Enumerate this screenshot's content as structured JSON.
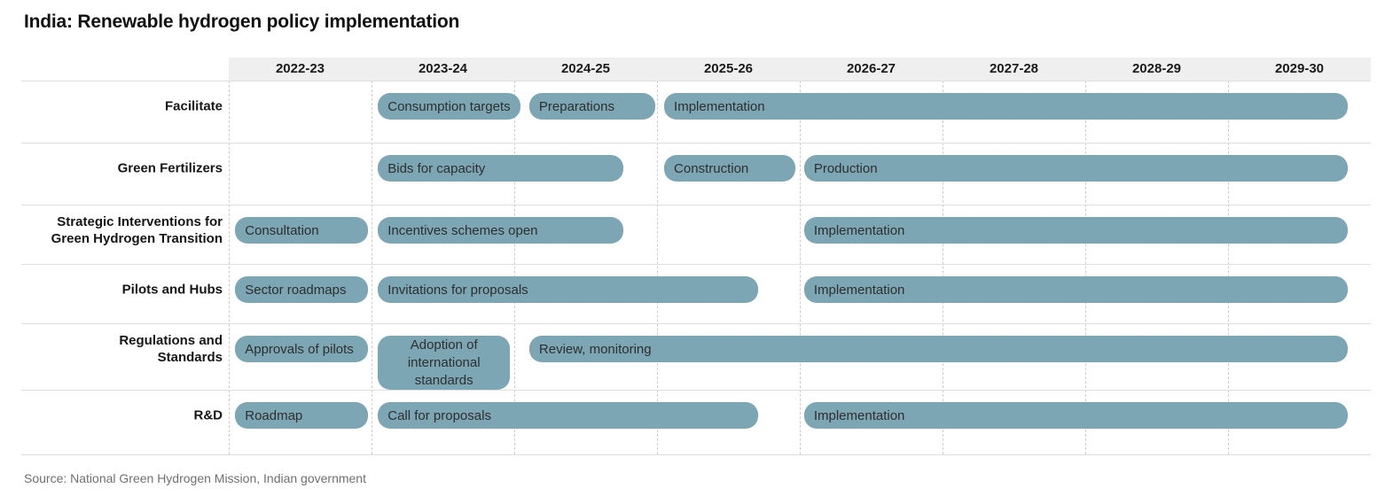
{
  "chart_data": {
    "type": "gantt",
    "title": "India: Renewable hydrogen policy implementation",
    "source": "Source: National Green Hydrogen Mission, Indian government",
    "categories": [
      "2022-23",
      "2023-24",
      "2024-25",
      "2025-26",
      "2026-27",
      "2027-28",
      "2028-29",
      "2029-30"
    ],
    "rows": [
      {
        "label": "Facilitate",
        "bars": [
          {
            "label": "Consumption targets",
            "start": 1.045,
            "end": 2.045
          },
          {
            "label": "Preparations",
            "start": 2.105,
            "end": 2.985
          },
          {
            "label": "Implementation",
            "start": 3.05,
            "end": 7.84
          }
        ]
      },
      {
        "label": "Green Fertilizers",
        "bars": [
          {
            "label": "Bids for capacity",
            "start": 1.045,
            "end": 2.765
          },
          {
            "label": "Construction",
            "start": 3.05,
            "end": 3.97
          },
          {
            "label": "Production",
            "start": 4.03,
            "end": 7.84
          }
        ]
      },
      {
        "label": "Strategic Interventions for\nGreen Hydrogen Transition",
        "bars": [
          {
            "label": "Consultation",
            "start": 0.045,
            "end": 0.975
          },
          {
            "label": "Incentives schemes open",
            "start": 1.045,
            "end": 2.765
          },
          {
            "label": "Implementation",
            "start": 4.03,
            "end": 7.84
          }
        ]
      },
      {
        "label": "Pilots and Hubs",
        "bars": [
          {
            "label": "Sector roadmaps",
            "start": 0.045,
            "end": 0.975
          },
          {
            "label": "Invitations for proposals",
            "start": 1.045,
            "end": 3.71
          },
          {
            "label": "Implementation",
            "start": 4.03,
            "end": 7.84
          }
        ]
      },
      {
        "label": "Regulations and\nStandards",
        "bars": [
          {
            "label": "Approvals of pilots",
            "start": 0.045,
            "end": 0.975
          },
          {
            "label": "Adoption of\ninternational\nstandards",
            "start": 1.045,
            "end": 1.97,
            "tall": true
          },
          {
            "label": "Review, monitoring",
            "start": 2.105,
            "end": 7.84
          }
        ]
      },
      {
        "label": "R&D",
        "bars": [
          {
            "label": "Roadmap",
            "start": 0.045,
            "end": 0.975
          },
          {
            "label": "Call for proposals",
            "start": 1.045,
            "end": 3.71
          },
          {
            "label": "Implementation",
            "start": 4.03,
            "end": 7.84
          }
        ]
      }
    ],
    "colors": {
      "bar_fill": "#7ca6b4",
      "bar_text": "#2e2e2e",
      "header_background": "#efefef",
      "gridline_dashed": "#cdcdcd",
      "row_separator": "#dedede",
      "title_text": "#111111",
      "source_text": "#707070"
    },
    "legend": "none",
    "grid": "dashed vertical column separators, solid horizontal row separators"
  }
}
